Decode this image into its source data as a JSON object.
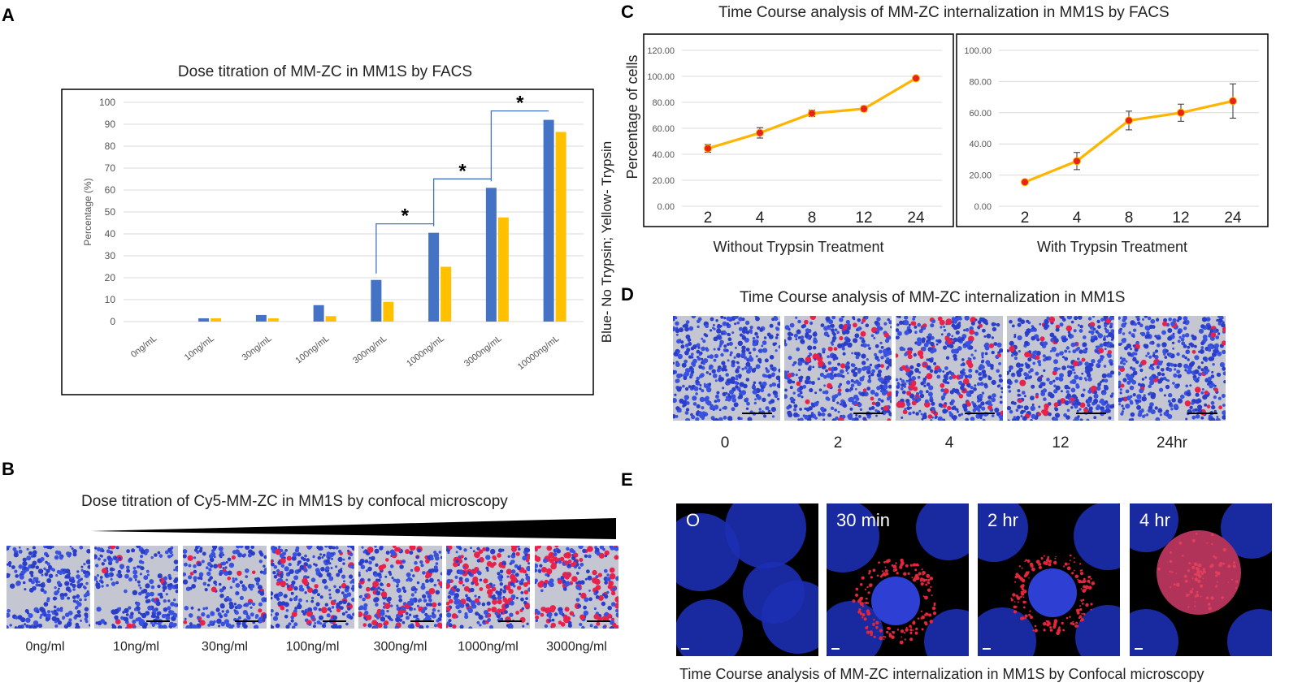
{
  "panels": {
    "A": "A",
    "B": "B",
    "C": "C",
    "D": "D",
    "E": "E"
  },
  "colors": {
    "blue": "#4472c4",
    "yellow": "#ffc000",
    "orange": "#ffb400",
    "marker": "#e8231a"
  },
  "chart_data": [
    {
      "id": "A",
      "type": "bar",
      "title": "Dose titration of MM-ZC in MM1S by FACS",
      "ylabel": "Percentage (%)",
      "side_label": "Blue- No Trypsin;  Yellow- Trypsin",
      "categories": [
        "0ng/mL",
        "10ng/mL",
        "30ng/mL",
        "100ng/mL",
        "300ng/mL",
        "1000ng/mL",
        "3000ng/mL",
        "10000ng/mL"
      ],
      "series": [
        {
          "name": "No Trypsin",
          "color": "#4472c4",
          "values": [
            0,
            1.5,
            3,
            7.5,
            19,
            40.5,
            61,
            92
          ]
        },
        {
          "name": "Trypsin",
          "color": "#ffc000",
          "values": [
            0,
            1.5,
            1.5,
            2.5,
            9,
            25,
            47.5,
            86.5
          ]
        }
      ],
      "ylim": [
        0,
        100
      ],
      "yticks": [
        0,
        10,
        20,
        30,
        40,
        50,
        60,
        70,
        80,
        90,
        100
      ],
      "significance": [
        {
          "from": 4,
          "to": 5,
          "label": "*"
        },
        {
          "from": 5,
          "to": 6,
          "label": "*"
        },
        {
          "from": 6,
          "to": 7,
          "label": "*"
        }
      ]
    },
    {
      "id": "C1",
      "type": "line",
      "title": "Time Course analysis of MM-ZC internalization in MM1S by FACS",
      "ylabel": "Percentage of cells",
      "xlabel": "Without Trypsin Treatment",
      "categories": [
        "2",
        "4",
        "8",
        "12",
        "24"
      ],
      "values": [
        44.5,
        56.5,
        71.5,
        75,
        98.5
      ],
      "errors": [
        3,
        4,
        2.5,
        2,
        0.5
      ],
      "ylim": [
        0,
        120
      ],
      "yticks": [
        "0.00",
        "20.00",
        "40.00",
        "60.00",
        "80.00",
        "100.00",
        "120.00"
      ]
    },
    {
      "id": "C2",
      "type": "line",
      "xlabel": "With Trypsin Treatment",
      "categories": [
        "2",
        "4",
        "8",
        "12",
        "24"
      ],
      "values": [
        15.5,
        29,
        55,
        60,
        67.5
      ],
      "errors": [
        1,
        5.5,
        6,
        5.5,
        11
      ],
      "ylim": [
        0,
        100
      ],
      "yticks": [
        "0.00",
        "20.00",
        "40.00",
        "60.00",
        "80.00",
        "100.00"
      ]
    }
  ],
  "panelB": {
    "title": "Dose titration of Cy5-MM-ZC  in MM1S by confocal microscopy",
    "labels": [
      "0ng/ml",
      "10ng/ml",
      "30ng/ml",
      "100ng/ml",
      "300ng/ml",
      "1000ng/ml",
      "3000ng/ml"
    ],
    "red_levels": [
      0,
      0.03,
      0.06,
      0.1,
      0.2,
      0.3,
      0.4
    ]
  },
  "panelD": {
    "title": "Time Course analysis of MM-ZC internalization  in MM1S",
    "labels": [
      "0",
      "2",
      "4",
      "12",
      "24hr"
    ],
    "red_levels": [
      0,
      0.08,
      0.14,
      0.09,
      0.06
    ]
  },
  "panelE": {
    "labels": [
      "O",
      "30 min",
      "2 hr",
      "4 hr"
    ],
    "caption": "Time Course analysis of MM-ZC internalization  in MM1S by Confocal microscopy"
  }
}
